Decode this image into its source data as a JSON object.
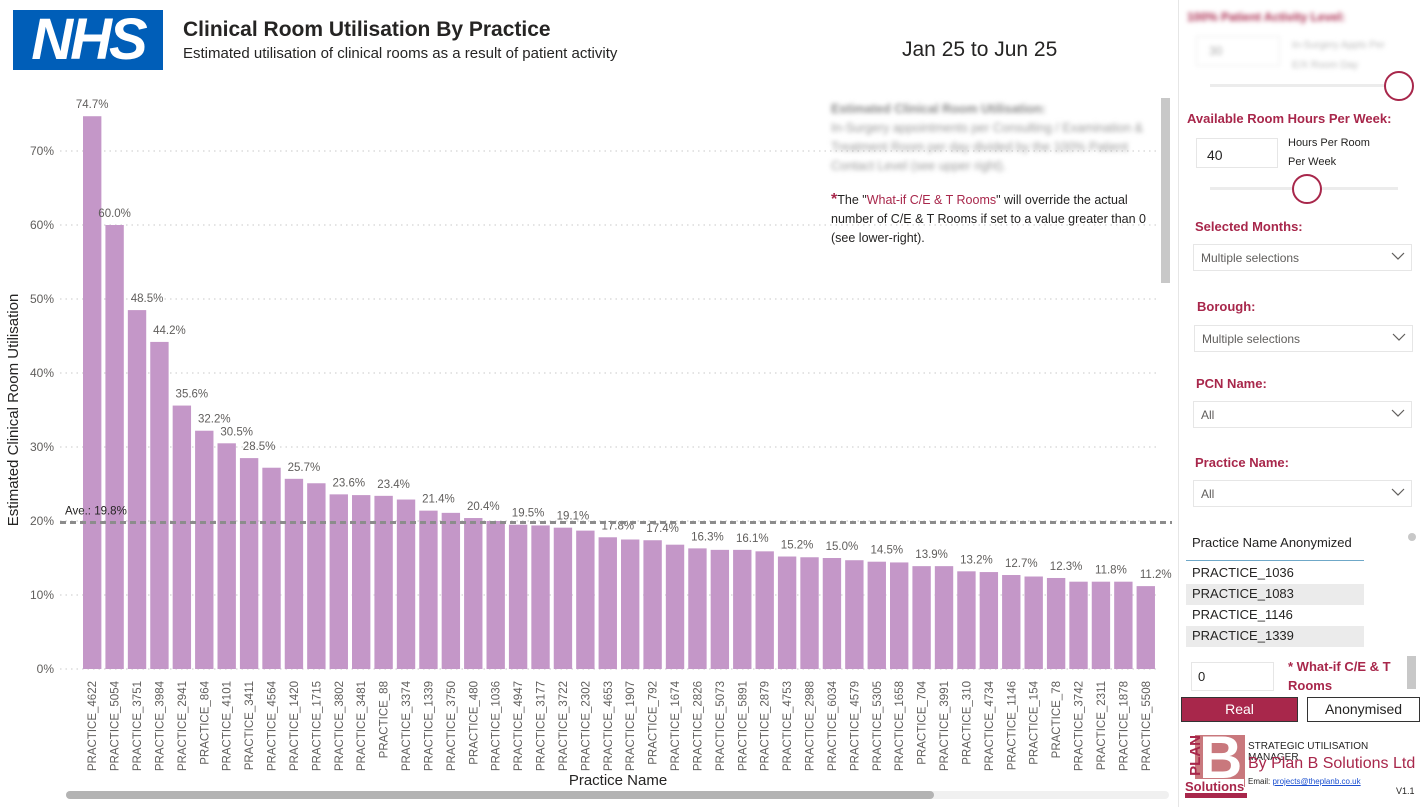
{
  "header": {
    "logo_text": "NHS",
    "title": "Clinical Room Utilisation By Practice",
    "subtitle": "Estimated utilisation of clinical rooms as a result of patient activity",
    "date_range": "Jan 25 to Jun 25"
  },
  "note": {
    "blurred_heading": "Estimated Clinical Room Utilisation:",
    "blurred_body": "In-Surgery appointments per Consulting / Examination & Treatment Room per day divided by the 100% Patient Contact Level (see upper right).",
    "star": "*",
    "text_before": "The \"",
    "highlight": "What-if C/E & T Rooms",
    "text_after": "\" will override the actual number of C/E & T Rooms if set to a value greater than 0 (see lower-right)."
  },
  "chart_data": {
    "type": "bar",
    "title": "Clinical Room Utilisation By Practice",
    "xlabel": "Practice Name",
    "ylabel": "Estimated Clinical Room Utilisation",
    "ylim": [
      0,
      0.78
    ],
    "yticks": [
      0,
      0.1,
      0.2,
      0.3,
      0.4,
      0.5,
      0.6,
      0.7
    ],
    "ytick_labels": [
      "0%",
      "10%",
      "20%",
      "30%",
      "40%",
      "50%",
      "60%",
      "70%"
    ],
    "grid": true,
    "bar_color": "#C497C8",
    "average": {
      "label": "Ave.: 19.8%",
      "value": 0.198
    },
    "categories": [
      "PRACTICE_4622",
      "PRACTICE_5054",
      "PRACTICE_3751",
      "PRACTICE_3984",
      "PRACTICE_2941",
      "PRACTICE_864",
      "PRACTICE_4101",
      "PRACTICE_3411",
      "PRACTICE_4564",
      "PRACTICE_1420",
      "PRACTICE_1715",
      "PRACTICE_3802",
      "PRACTICE_3481",
      "PRACTICE_88",
      "PRACTICE_3374",
      "PRACTICE_1339",
      "PRACTICE_3750",
      "PRACTICE_480",
      "PRACTICE_1036",
      "PRACTICE_4947",
      "PRACTICE_3177",
      "PRACTICE_3722",
      "PRACTICE_2302",
      "PRACTICE_4653",
      "PRACTICE_1907",
      "PRACTICE_792",
      "PRACTICE_1674",
      "PRACTICE_2826",
      "PRACTICE_5073",
      "PRACTICE_5891",
      "PRACTICE_2879",
      "PRACTICE_4753",
      "PRACTICE_2988",
      "PRACTICE_6034",
      "PRACTICE_4579",
      "PRACTICE_5305",
      "PRACTICE_1658",
      "PRACTICE_704",
      "PRACTICE_3991",
      "PRACTICE_310",
      "PRACTICE_4734",
      "PRACTICE_1146",
      "PRACTICE_154",
      "PRACTICE_78",
      "PRACTICE_3742",
      "PRACTICE_2311",
      "PRACTICE_1878",
      "PRACTICE_5508"
    ],
    "values": [
      0.747,
      0.6,
      0.485,
      0.442,
      0.356,
      0.322,
      0.305,
      0.285,
      0.272,
      0.257,
      0.251,
      0.236,
      0.235,
      0.234,
      0.229,
      0.214,
      0.211,
      0.204,
      0.2,
      0.195,
      0.194,
      0.191,
      0.187,
      0.178,
      0.175,
      0.174,
      0.168,
      0.163,
      0.161,
      0.161,
      0.159,
      0.152,
      0.151,
      0.15,
      0.147,
      0.145,
      0.144,
      0.139,
      0.139,
      0.132,
      0.131,
      0.127,
      0.125,
      0.123,
      0.118,
      0.118,
      0.118,
      0.112
    ],
    "data_labels": [
      "74.7%",
      "60.0%",
      "48.5%",
      "44.2%",
      "35.6%",
      "32.2%",
      "30.5%",
      "28.5%",
      "",
      "25.7%",
      "",
      "23.6%",
      "",
      "23.4%",
      "",
      "21.4%",
      "",
      "20.4%",
      "",
      "19.5%",
      "",
      "19.1%",
      "",
      "17.8%",
      "",
      "17.4%",
      "",
      "16.3%",
      "",
      "16.1%",
      "",
      "15.2%",
      "",
      "15.0%",
      "",
      "14.5%",
      "",
      "13.9%",
      "",
      "13.2%",
      "",
      "12.7%",
      "",
      "12.3%",
      "",
      "11.8%",
      "",
      "11.2%"
    ]
  },
  "panel": {
    "blurred_section_label": "100% Patient Activity Level:",
    "blurred_input_value": "30",
    "blurred_hint": "In-Surgery Appts Per E/X Room Day",
    "room_hours_label": "Available Room Hours Per Week:",
    "room_hours_value": "40",
    "room_hours_hint_1": "Hours Per Room",
    "room_hours_hint_2": "Per Week",
    "patient_level_slider_value": 1.0,
    "room_hours_slider_value": 0.55,
    "filters": [
      {
        "label": "Selected Months:",
        "value": "Multiple selections"
      },
      {
        "label": "Borough:",
        "value": "Multiple selections"
      },
      {
        "label": "PCN Name:",
        "value": "All"
      },
      {
        "label": "Practice Name:",
        "value": "All"
      }
    ],
    "slicer_title": "Practice Name Anonymized",
    "slicer_items": [
      "PRACTICE_1036",
      "PRACTICE_1083",
      "PRACTICE_1146",
      "PRACTICE_1339"
    ],
    "whatif_value": "0",
    "whatif_label": "* What-if C/E & T Rooms",
    "btn_real": "Real",
    "btn_anon": "Anonymised"
  },
  "footer": {
    "logo_plan": "PLAN",
    "logo_b": "B",
    "logo_solutions": "Solutions",
    "product": "STRATEGIC UTILISATION MANAGER",
    "company": "By Plan B Solutions Ltd",
    "email_label": "Email: ",
    "email": "projects@theplanb.co.uk",
    "version": "V1.1"
  }
}
